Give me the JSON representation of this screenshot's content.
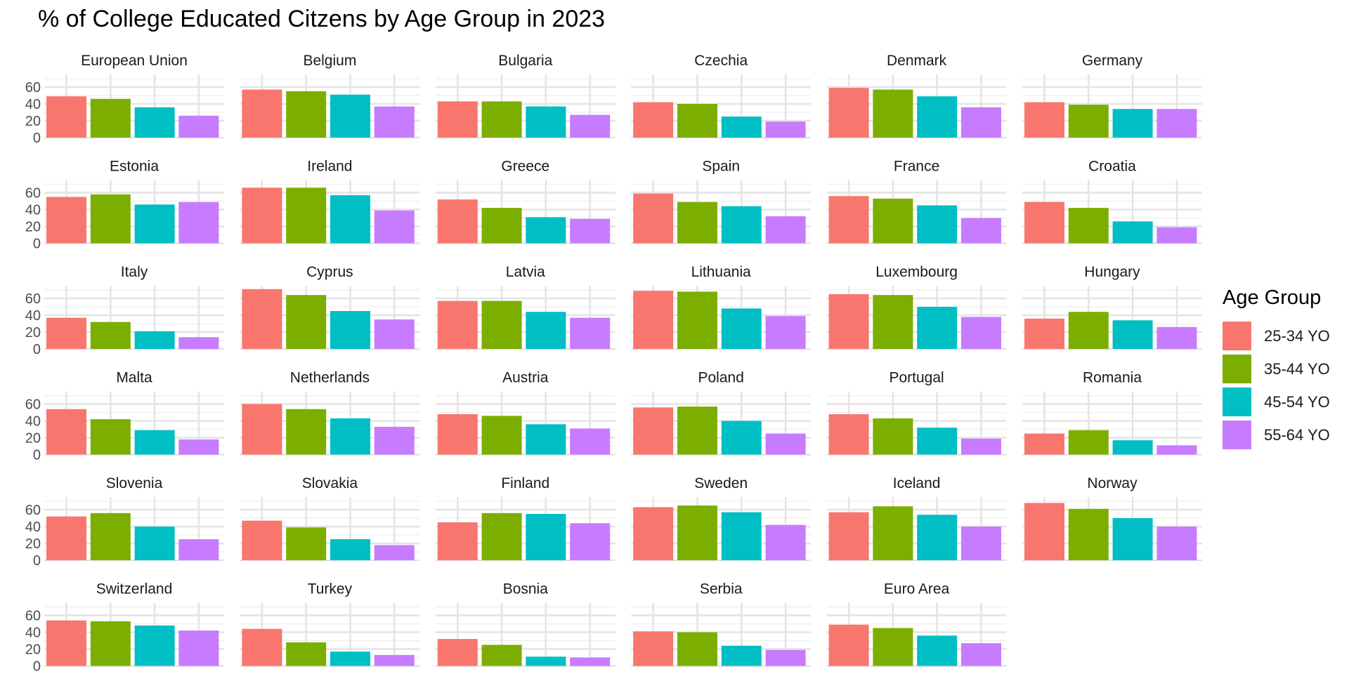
{
  "chart_data": {
    "type": "bar",
    "title": "% of College Educated Citzens by Age Group in 2023",
    "xlabel": "",
    "ylabel": "",
    "ylim": [
      0,
      75
    ],
    "yticks": [
      "0",
      "20",
      "40",
      "60"
    ],
    "grid": true,
    "legend": {
      "title": "Age Group",
      "position": "right"
    },
    "categories": [
      "25-34 YO",
      "35-44 YO",
      "45-54 YO",
      "55-64 YO"
    ],
    "colors": [
      "#F8766D",
      "#7CAE00",
      "#00BFC4",
      "#C77CFF"
    ],
    "panels": [
      {
        "name": "European Union",
        "values": [
          49,
          46,
          36,
          26
        ]
      },
      {
        "name": "Belgium",
        "values": [
          57,
          55,
          51,
          37
        ]
      },
      {
        "name": "Bulgaria",
        "values": [
          43,
          43,
          37,
          27
        ]
      },
      {
        "name": "Czechia",
        "values": [
          42,
          40,
          25,
          19
        ]
      },
      {
        "name": "Denmark",
        "values": [
          59,
          57,
          49,
          36
        ]
      },
      {
        "name": "Germany",
        "values": [
          42,
          39,
          34,
          34
        ]
      },
      {
        "name": "Estonia",
        "values": [
          55,
          58,
          46,
          49
        ]
      },
      {
        "name": "Ireland",
        "values": [
          66,
          66,
          57,
          39
        ]
      },
      {
        "name": "Greece",
        "values": [
          52,
          42,
          31,
          29
        ]
      },
      {
        "name": "Spain",
        "values": [
          59,
          49,
          44,
          32
        ]
      },
      {
        "name": "France",
        "values": [
          56,
          53,
          45,
          30
        ]
      },
      {
        "name": "Croatia",
        "values": [
          49,
          42,
          26,
          19
        ]
      },
      {
        "name": "Italy",
        "values": [
          37,
          32,
          21,
          14
        ]
      },
      {
        "name": "Cyprus",
        "values": [
          71,
          64,
          45,
          35
        ]
      },
      {
        "name": "Latvia",
        "values": [
          57,
          57,
          44,
          37
        ]
      },
      {
        "name": "Lithuania",
        "values": [
          69,
          68,
          48,
          39
        ]
      },
      {
        "name": "Luxembourg",
        "values": [
          65,
          64,
          50,
          38
        ]
      },
      {
        "name": "Hungary",
        "values": [
          36,
          44,
          34,
          26
        ]
      },
      {
        "name": "Malta",
        "values": [
          54,
          42,
          29,
          18
        ]
      },
      {
        "name": "Netherlands",
        "values": [
          60,
          54,
          43,
          33
        ]
      },
      {
        "name": "Austria",
        "values": [
          48,
          46,
          36,
          31
        ]
      },
      {
        "name": "Poland",
        "values": [
          56,
          57,
          40,
          25
        ]
      },
      {
        "name": "Portugal",
        "values": [
          48,
          43,
          32,
          19
        ]
      },
      {
        "name": "Romania",
        "values": [
          25,
          29,
          17,
          11
        ]
      },
      {
        "name": "Slovenia",
        "values": [
          52,
          56,
          40,
          25
        ]
      },
      {
        "name": "Slovakia",
        "values": [
          47,
          39,
          25,
          18
        ]
      },
      {
        "name": "Finland",
        "values": [
          45,
          56,
          55,
          44
        ]
      },
      {
        "name": "Sweden",
        "values": [
          63,
          65,
          57,
          42
        ]
      },
      {
        "name": "Iceland",
        "values": [
          57,
          64,
          54,
          40
        ]
      },
      {
        "name": "Norway",
        "values": [
          68,
          61,
          50,
          40
        ]
      },
      {
        "name": "Switzerland",
        "values": [
          54,
          53,
          48,
          42
        ]
      },
      {
        "name": "Turkey",
        "values": [
          44,
          28,
          17,
          13
        ]
      },
      {
        "name": "Bosnia",
        "values": [
          32,
          25,
          11,
          10
        ]
      },
      {
        "name": "Serbia",
        "values": [
          41,
          40,
          24,
          19
        ]
      },
      {
        "name": "Euro Area",
        "values": [
          49,
          45,
          36,
          27
        ]
      }
    ]
  }
}
